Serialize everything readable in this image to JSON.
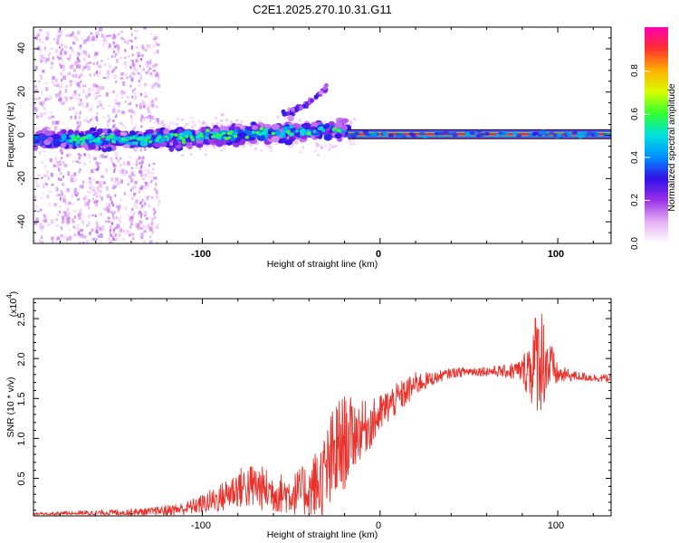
{
  "title": "C2E1.2025.270.10.31.G11",
  "chart_data": [
    {
      "type": "heatmap",
      "name": "spectrogram",
      "xlabel": "Height of straight line (km)",
      "ylabel": "Frequency (Hz)",
      "xlim": [
        -195,
        130
      ],
      "ylim": [
        -50,
        50
      ],
      "x_ticks": [
        "-100",
        "0",
        "100"
      ],
      "y_ticks": [
        "-40",
        "-20",
        "0",
        "20",
        "40"
      ],
      "colorbar": {
        "label": "Normalized spectral amplitude",
        "range": [
          0.0,
          1.0
        ],
        "ticks": [
          "0.0",
          "0.2",
          "0.4",
          "0.6",
          "0.8"
        ],
        "colors": [
          "#ffffff",
          "#e6b0f5",
          "#9b30e8",
          "#3010e8",
          "#0090ff",
          "#00e0e0",
          "#30ff30",
          "#d8ff00",
          "#ffb000",
          "#ff3030",
          "#ff00b0"
        ]
      },
      "features": {
        "main_band": {
          "x": [
            -195,
            -18
          ],
          "center_hz": [
            -2,
            3
          ],
          "amplitude": [
            0.15,
            0.5
          ]
        },
        "carrier_line": {
          "x": [
            -18,
            130
          ],
          "center_hz": 0.5,
          "amplitude": 0.95
        },
        "spur": {
          "x": [
            -55,
            -30
          ],
          "hz": [
            10,
            22
          ],
          "amplitude": 0.2
        },
        "noise_region": {
          "x": [
            -195,
            -125
          ],
          "hz": [
            -50,
            50
          ],
          "amplitude": 0.12
        }
      }
    },
    {
      "type": "line",
      "name": "snr",
      "xlabel": "Height of straight line (km)",
      "ylabel": "SNR (10 * v/v)",
      "ylabel_scale_base": "(x10",
      "ylabel_scale_exp": "4",
      "ylabel_scale_close": ")",
      "xlim": [
        -195,
        130
      ],
      "ylim": [
        0.03,
        2.75
      ],
      "x_ticks": [
        "-100",
        "0",
        "100"
      ],
      "y_ticks": [
        "0.5",
        "1.0",
        "1.5",
        "2.0",
        "2.5"
      ],
      "color": "#e8322b",
      "x": [
        -195,
        -175,
        -150,
        -130,
        -110,
        -100,
        -90,
        -80,
        -70,
        -60,
        -50,
        -40,
        -35,
        -30,
        -25,
        -20,
        -15,
        -10,
        -5,
        0,
        5,
        10,
        15,
        20,
        30,
        40,
        50,
        60,
        70,
        80,
        85,
        90,
        95,
        100,
        110,
        120,
        130
      ],
      "y": [
        0.05,
        0.06,
        0.07,
        0.08,
        0.12,
        0.18,
        0.25,
        0.38,
        0.4,
        0.32,
        0.3,
        0.36,
        0.42,
        0.55,
        0.8,
        0.95,
        1.05,
        1.12,
        1.18,
        1.3,
        1.42,
        1.5,
        1.58,
        1.68,
        1.75,
        1.82,
        1.84,
        1.84,
        1.84,
        1.85,
        1.9,
        2.05,
        1.9,
        1.8,
        1.78,
        1.76,
        1.75
      ],
      "noise": [
        0.02,
        0.03,
        0.04,
        0.05,
        0.08,
        0.12,
        0.18,
        0.25,
        0.3,
        0.25,
        0.25,
        0.35,
        0.5,
        0.6,
        0.7,
        0.6,
        0.45,
        0.35,
        0.3,
        0.25,
        0.22,
        0.2,
        0.18,
        0.15,
        0.08,
        0.06,
        0.06,
        0.06,
        0.08,
        0.15,
        0.5,
        0.75,
        0.4,
        0.12,
        0.06,
        0.05,
        0.05
      ]
    }
  ]
}
